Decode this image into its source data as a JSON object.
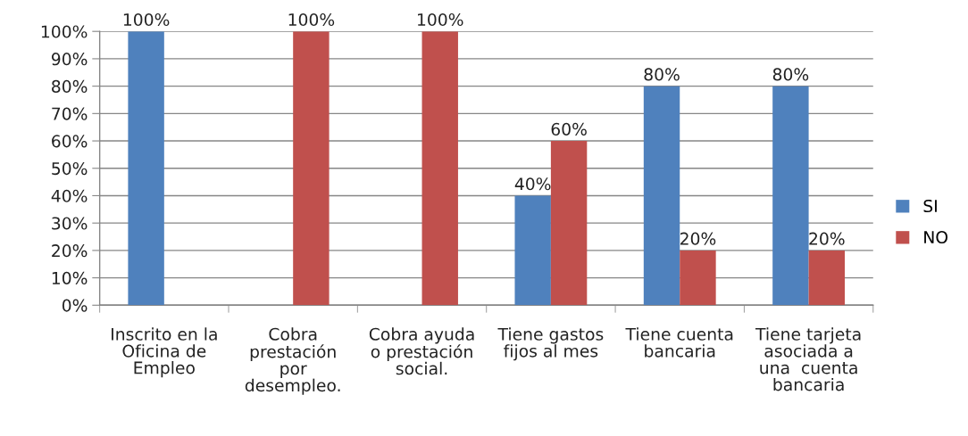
{
  "chart_data": {
    "type": "bar",
    "categories": [
      "Inscrito en la\nOficina de\nEmpleo",
      "Cobra\nprestación\npor\ndesempleo.",
      "Cobra ayuda\no prestación\nsocial.",
      "Tiene gastos\nfijos al mes",
      "Tiene cuenta\nbancaria",
      "Tiene tarjeta\nasociada a\nuna  cuenta\nbancaria"
    ],
    "series": [
      {
        "name": "SI",
        "color": "#4f81bd",
        "values": [
          100,
          null,
          null,
          40,
          80,
          80
        ],
        "value_labels": [
          "100%",
          null,
          null,
          "40%",
          "80%",
          "80%"
        ]
      },
      {
        "name": "NO",
        "color": "#c0504d",
        "values": [
          null,
          100,
          100,
          60,
          20,
          20
        ],
        "value_labels": [
          null,
          "100%",
          "100%",
          "60%",
          "20%",
          "20%"
        ]
      }
    ],
    "ylim": [
      0,
      100
    ],
    "yticks": [
      {
        "value": 0,
        "label": "0%"
      },
      {
        "value": 10,
        "label": "10%"
      },
      {
        "value": 20,
        "label": "20%"
      },
      {
        "value": 30,
        "label": "30%"
      },
      {
        "value": 40,
        "label": "40%"
      },
      {
        "value": 50,
        "label": "50%"
      },
      {
        "value": 60,
        "label": "60%"
      },
      {
        "value": 70,
        "label": "70%"
      },
      {
        "value": 80,
        "label": "80%"
      },
      {
        "value": 90,
        "label": "90%"
      },
      {
        "value": 100,
        "label": "100%"
      }
    ],
    "grid": "y",
    "legend": "right"
  }
}
